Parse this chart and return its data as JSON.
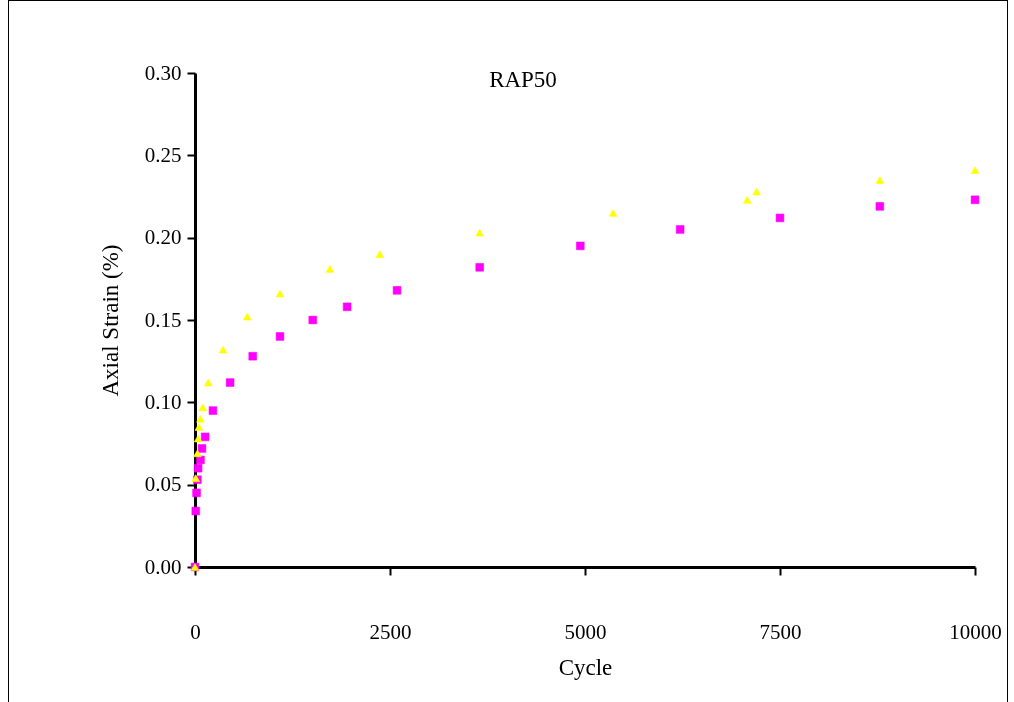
{
  "chart_data": {
    "type": "scatter",
    "title": "RAP50",
    "xlabel": "Cycle",
    "ylabel": "Axial Strain (%)",
    "xlim": [
      0,
      10000
    ],
    "xticks": [
      0,
      2500,
      5000,
      7500,
      10000
    ],
    "ylim": [
      0,
      0.3
    ],
    "yticks": [
      {
        "value": 0,
        "label": "0.00"
      },
      {
        "value": 0.05,
        "label": "0.05"
      },
      {
        "value": 0.1,
        "label": "0.10"
      },
      {
        "value": 0.15,
        "label": "0.15"
      },
      {
        "value": 0.2,
        "label": "0.20"
      },
      {
        "value": 0.25,
        "label": "0.25"
      },
      {
        "value": 0.3,
        "label": "0.30"
      }
    ],
    "grid": false,
    "series": [
      {
        "color": "#ffff00",
        "marker": "triangle",
        "x": [
          0,
          10,
          30,
          40,
          50,
          70,
          100,
          170,
          360,
          670,
          1090,
          1730,
          2370,
          3650,
          5360,
          7080,
          7200,
          8780,
          10000
        ],
        "values": [
          0,
          0.054,
          0.069,
          0.078,
          0.085,
          0.09,
          0.097,
          0.112,
          0.132,
          0.152,
          0.166,
          0.181,
          0.19,
          0.203,
          0.215,
          0.223,
          0.228,
          0.235,
          0.241
        ]
      },
      {
        "color": "#ff00ff",
        "marker": "square",
        "x": [
          0,
          10,
          20,
          30,
          40,
          70,
          90,
          130,
          230,
          450,
          740,
          1090,
          1510,
          1950,
          2590,
          3650,
          4940,
          6220,
          7500,
          8780,
          10000
        ],
        "values": [
          0,
          0.034,
          0.045,
          0.053,
          0.06,
          0.065,
          0.072,
          0.079,
          0.095,
          0.112,
          0.128,
          0.14,
          0.15,
          0.158,
          0.168,
          0.182,
          0.195,
          0.205,
          0.212,
          0.219,
          0.223
        ]
      }
    ]
  }
}
